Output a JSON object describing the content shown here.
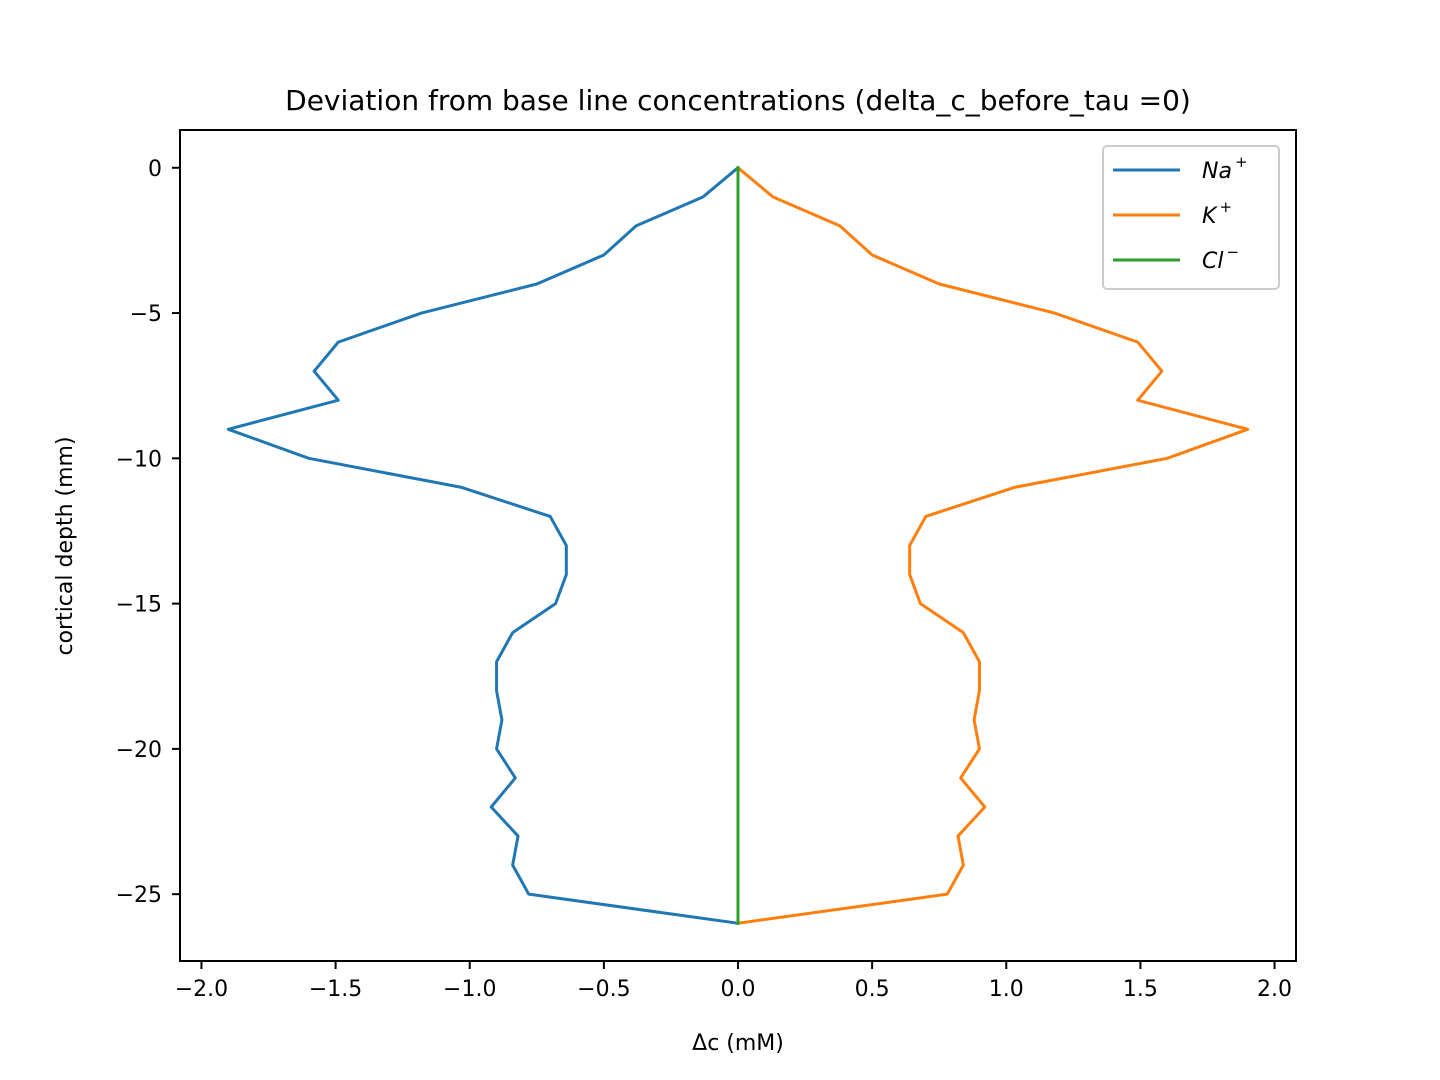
{
  "chart_data": {
    "type": "line",
    "title": "Deviation from base line concentrations (delta_c_before_tau =0)",
    "xlabel": "Δc (mM)",
    "ylabel": "cortical depth (mm)",
    "xlim": [
      -2.08,
      2.08
    ],
    "ylim": [
      -27.3,
      1.3
    ],
    "xticks": [
      -2.0,
      -1.5,
      -1.0,
      -0.5,
      0.0,
      0.5,
      1.0,
      1.5,
      2.0
    ],
    "xtick_labels": [
      "−2.0",
      "−1.5",
      "−1.0",
      "−0.5",
      "0.0",
      "0.5",
      "1.0",
      "1.5",
      "2.0"
    ],
    "yticks": [
      0,
      -5,
      -10,
      -15,
      -20,
      -25
    ],
    "ytick_labels": [
      "0",
      "−5",
      "−10",
      "−15",
      "−20",
      "−25"
    ],
    "grid": false,
    "legend_position": "top-right",
    "series": [
      {
        "name": "Na",
        "superscript": "+",
        "color": "#1f77b4",
        "x": [
          0,
          -0.13,
          -0.38,
          -0.5,
          -0.75,
          -1.18,
          -1.49,
          -1.58,
          -1.49,
          -1.9,
          -1.6,
          -1.03,
          -0.7,
          -0.64,
          -0.64,
          -0.68,
          -0.84,
          -0.9,
          -0.9,
          -0.88,
          -0.9,
          -0.83,
          -0.92,
          -0.82,
          -0.84,
          -0.78,
          0
        ],
        "y": [
          0,
          -1,
          -2,
          -3,
          -4,
          -5,
          -6,
          -7,
          -8,
          -9,
          -10,
          -11,
          -12,
          -13,
          -14,
          -15,
          -16,
          -17,
          -18,
          -19,
          -20,
          -21,
          -22,
          -23,
          -24,
          -25,
          -26
        ]
      },
      {
        "name": "K",
        "superscript": "+",
        "color": "#ff7f0e",
        "x": [
          0,
          0.13,
          0.38,
          0.5,
          0.75,
          1.18,
          1.49,
          1.58,
          1.49,
          1.9,
          1.6,
          1.03,
          0.7,
          0.64,
          0.64,
          0.68,
          0.84,
          0.9,
          0.9,
          0.88,
          0.9,
          0.83,
          0.92,
          0.82,
          0.84,
          0.78,
          0
        ],
        "y": [
          0,
          -1,
          -2,
          -3,
          -4,
          -5,
          -6,
          -7,
          -8,
          -9,
          -10,
          -11,
          -12,
          -13,
          -14,
          -15,
          -16,
          -17,
          -18,
          -19,
          -20,
          -21,
          -22,
          -23,
          -24,
          -25,
          -26
        ]
      },
      {
        "name": "Cl",
        "superscript": "−",
        "color": "#2ca02c",
        "x": [
          0,
          0
        ],
        "y": [
          0,
          -26
        ]
      }
    ]
  }
}
